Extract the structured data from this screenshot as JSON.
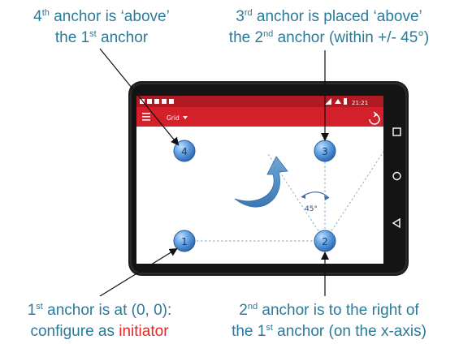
{
  "captions": {
    "top_left": {
      "line1": [
        "4",
        "th",
        " anchor is ‘above’"
      ],
      "line2": [
        "the 1",
        "st",
        " anchor"
      ]
    },
    "top_right": {
      "line1": [
        "3",
        "rd",
        " anchor is placed ‘above’"
      ],
      "line2": [
        "the 2",
        "nd",
        " anchor (within +/- 45°)"
      ]
    },
    "bottom_left": {
      "line1": [
        "1",
        "st",
        " anchor is at (0, 0):"
      ],
      "line2_prefix": "configure as ",
      "line2_highlight": "initiator"
    },
    "bottom_right": {
      "line1": [
        "2",
        "nd",
        " anchor is to the right of"
      ],
      "line2": [
        "the 1",
        "st",
        " anchor (on the x-axis)"
      ]
    }
  },
  "app": {
    "status_time": "21:21",
    "toolbar_title": "Grid",
    "menu_icon": "hamburger-menu-icon",
    "dropdown_icon": "caret-down-icon",
    "refresh_icon": "refresh-icon",
    "toolbar_color": "#d3202a"
  },
  "anchors": [
    {
      "label": "1"
    },
    {
      "label": "2"
    },
    {
      "label": "3"
    },
    {
      "label": "4"
    }
  ],
  "angle_label": "45°",
  "nav_icons": [
    "square-nav-icon",
    "circle-nav-icon",
    "triangle-back-icon"
  ]
}
